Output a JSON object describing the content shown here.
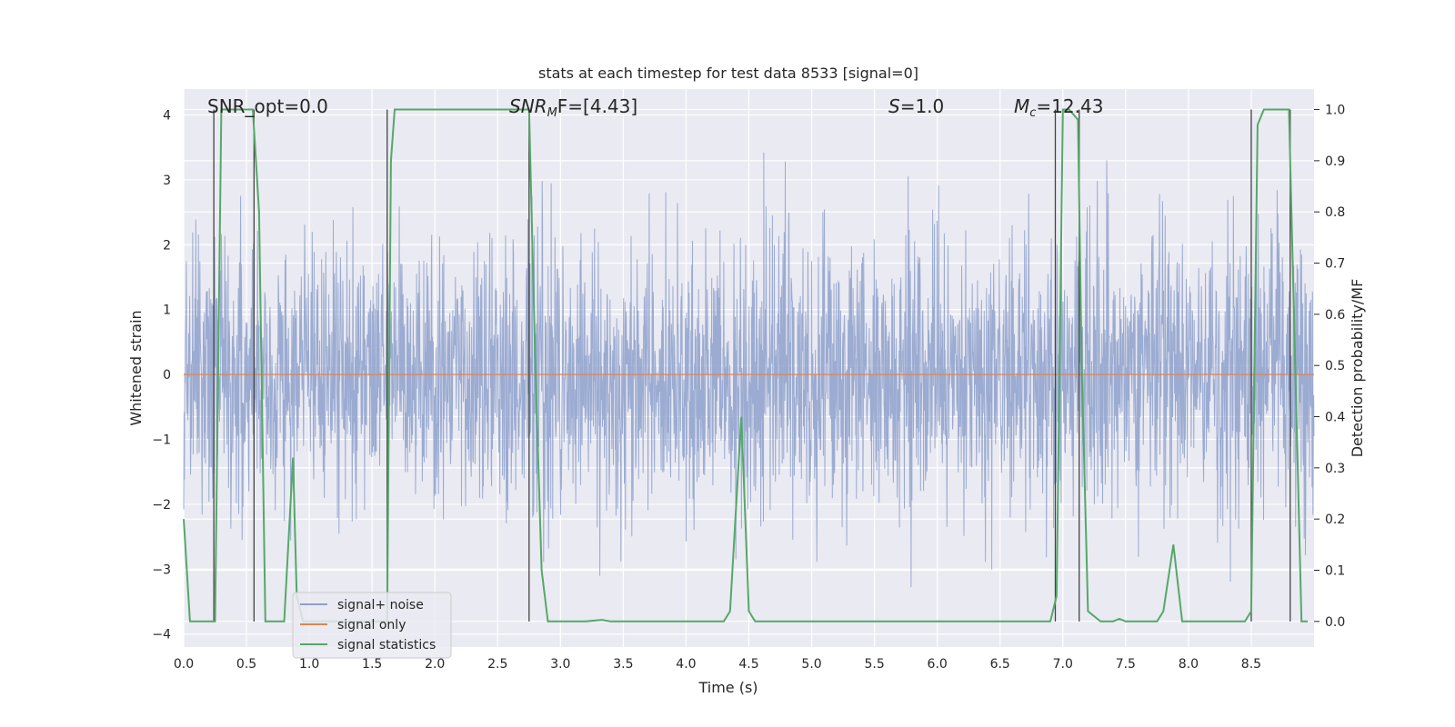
{
  "chart_data": {
    "type": "line",
    "title": "stats at each timestep for test data 8533 [signal=0]",
    "xlabel": "Time (s)",
    "ylabel_left": "Whitened strain",
    "ylabel_right": "Detection probability/MF",
    "xlim": [
      0.0,
      9.0
    ],
    "ylim_left": [
      -4.2,
      4.4
    ],
    "ylim_right": [
      -0.05,
      1.04
    ],
    "x_ticks": [
      "0.0",
      "0.5",
      "1.0",
      "1.5",
      "2.0",
      "2.5",
      "3.0",
      "3.5",
      "4.0",
      "4.5",
      "5.0",
      "5.5",
      "6.0",
      "6.5",
      "7.0",
      "7.5",
      "8.0",
      "8.5"
    ],
    "x_tick_values": [
      0.0,
      0.5,
      1.0,
      1.5,
      2.0,
      2.5,
      3.0,
      3.5,
      4.0,
      4.5,
      5.0,
      5.5,
      6.0,
      6.5,
      7.0,
      7.5,
      8.0,
      8.5
    ],
    "y_ticks_left": [
      "4",
      "3",
      "2",
      "1",
      "0",
      "−1",
      "−2",
      "−3",
      "−4"
    ],
    "y_tick_values_left": [
      4,
      3,
      2,
      1,
      0,
      -1,
      -2,
      -3,
      -4
    ],
    "y_ticks_right": [
      "1.0",
      "0.9",
      "0.8",
      "0.7",
      "0.6",
      "0.5",
      "0.4",
      "0.3",
      "0.2",
      "0.1",
      "0.0"
    ],
    "y_tick_values_right": [
      1.0,
      0.9,
      0.8,
      0.7,
      0.6,
      0.5,
      0.4,
      0.3,
      0.2,
      0.1,
      0.0
    ],
    "grid": true,
    "legend_position": "bottom-left",
    "series": [
      {
        "name": "signal+ noise",
        "color": "#8da0cb",
        "axis": "left",
        "description_values": "whitened noise, band roughly -2.5 to 2.5 with spikes to about 3.6 and -3.5",
        "sample_rate_hz": 2048,
        "noise_envelope": [
          -2.6,
          2.6
        ]
      },
      {
        "name": "signal only",
        "color": "#dd8452",
        "axis": "left",
        "x": [
          0.0,
          9.0
        ],
        "y": [
          0.0,
          0.0
        ]
      },
      {
        "name": "signal statistics",
        "color": "#55a868",
        "axis": "right",
        "x": [
          0.0,
          0.05,
          0.25,
          0.3,
          0.55,
          0.6,
          0.65,
          0.69,
          0.7,
          0.8,
          0.87,
          0.9,
          0.95,
          1.0,
          1.6,
          1.62,
          1.65,
          1.68,
          2.75,
          2.8,
          2.85,
          2.9,
          3.0,
          3.2,
          3.33,
          3.4,
          4.3,
          4.35,
          4.44,
          4.5,
          4.55,
          4.6,
          6.9,
          6.95,
          7.0,
          7.05,
          7.12,
          7.15,
          7.2,
          7.3,
          7.4,
          7.45,
          7.5,
          7.75,
          7.8,
          7.88,
          7.95,
          8.0,
          8.45,
          8.5,
          8.55,
          8.6,
          8.65,
          8.75,
          8.8,
          8.85,
          8.9,
          8.95
        ],
        "y": [
          0.2,
          0.0,
          0.0,
          1.0,
          1.0,
          0.8,
          0.0,
          0.0,
          0.0,
          0.0,
          0.32,
          0.05,
          0.0,
          0.0,
          0.0,
          0.0,
          0.9,
          1.0,
          1.0,
          0.5,
          0.1,
          0.0,
          0.0,
          0.0,
          0.003,
          0.0,
          0.0,
          0.02,
          0.4,
          0.02,
          0.0,
          0.0,
          0.0,
          0.05,
          1.0,
          1.0,
          0.98,
          0.5,
          0.02,
          0.0,
          0.0,
          0.005,
          0.0,
          0.0,
          0.02,
          0.15,
          0.0,
          0.0,
          0.0,
          0.02,
          0.97,
          1.0,
          1.0,
          1.0,
          1.0,
          0.5,
          0.0,
          0.0
        ]
      }
    ],
    "vertical_lines": {
      "color": "#444444",
      "x": [
        0.24,
        0.56,
        1.62,
        2.75,
        6.94,
        7.13,
        8.5,
        8.81
      ]
    },
    "annotations": {
      "snr_opt": "SNR_opt=0.0",
      "snr_mf_base": "SNR",
      "snr_mf_sub": "M",
      "snr_mf_tail": "F=[4.43]",
      "s_italic": "S",
      "s_tail": "=1.0",
      "mc_italic": "M",
      "mc_sub": "c",
      "mc_tail": "=12.43"
    },
    "colors": {
      "plot_background": "#eaeaf2",
      "grid": "#ffffff"
    }
  }
}
